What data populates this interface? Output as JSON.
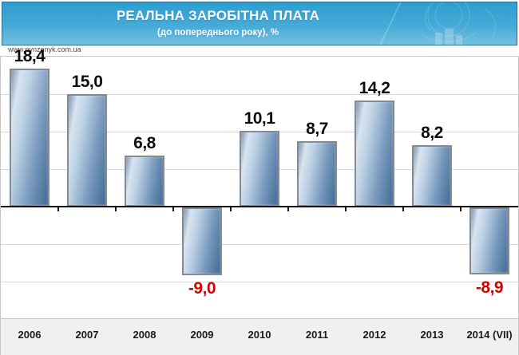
{
  "header": {
    "title": "РЕАЛЬНА ЗАРОБІТНА ПЛАТА",
    "subtitle": "(до попереднього року), %"
  },
  "watermark": "www.pynzenyk.com.ua",
  "colors": {
    "header_top": "#2d9ed1",
    "header_bottom": "#74c0de",
    "bar_light": "#d8e4f0",
    "bar_dark": "#3f6a95",
    "bar_border": "#838a90",
    "positive_label": "#0d0d0d",
    "negative_label": "#d40000",
    "gridline": "#d9d9d9",
    "axis": "#141414",
    "xaxis_strip": "#f0f0f0"
  },
  "chart_data": {
    "type": "bar",
    "title": "РЕАЛЬНА ЗАРОБІТНА ПЛАТА",
    "subtitle": "(до попереднього року), %",
    "categories": [
      "2006",
      "2007",
      "2008",
      "2009",
      "2010",
      "2011",
      "2012",
      "2013",
      "2014 (VII)"
    ],
    "values": [
      18.4,
      15.0,
      6.8,
      -9.0,
      10.1,
      8.7,
      14.2,
      8.2,
      -8.9
    ],
    "values_display": [
      "18,4",
      "15,0",
      "6,8",
      "-9,0",
      "10,1",
      "8,7",
      "14,2",
      "8,2",
      "-8,9"
    ],
    "xlabel": "",
    "ylabel": "",
    "ylim": [
      -15,
      20
    ],
    "grid_step": 5,
    "grid": true,
    "legend": false
  }
}
